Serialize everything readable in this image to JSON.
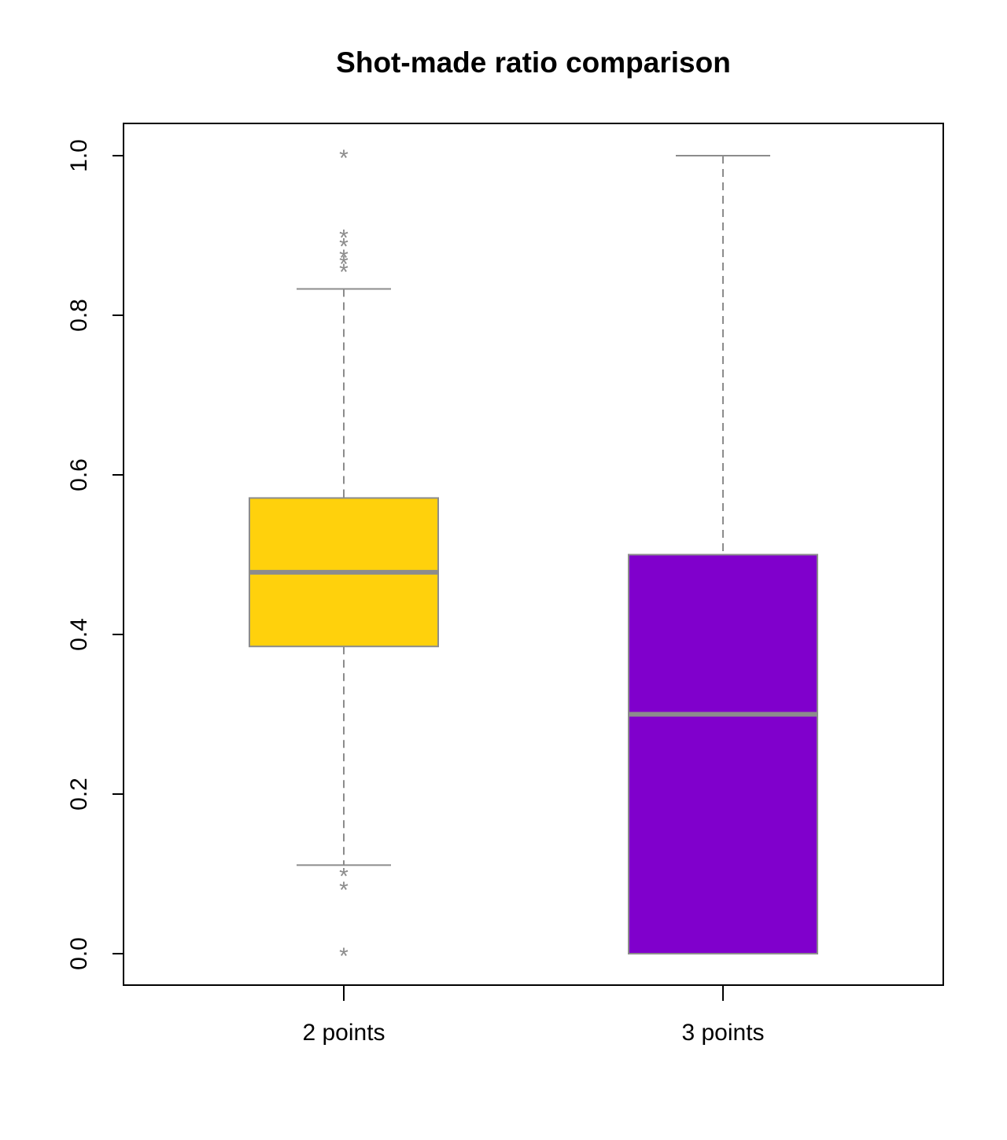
{
  "chart_data": {
    "type": "boxplot",
    "title": "Shot-made ratio comparison",
    "xlabel": "",
    "ylabel": "",
    "ylim": [
      -0.04,
      1.04
    ],
    "yticks": [
      "0.0",
      "0.2",
      "0.4",
      "0.6",
      "0.8",
      "1.0"
    ],
    "grid": false,
    "legend": "none",
    "categories": [
      "2 points",
      "3 points"
    ],
    "series": [
      {
        "min": 0.111,
        "q1": 0.385,
        "median": 0.478,
        "q3": 0.571,
        "max": 0.833,
        "outliers": [
          1.0,
          0.9,
          0.889,
          0.875,
          0.867,
          0.857,
          0.1,
          0.083,
          0.0
        ],
        "fill": "#FFD10C"
      },
      {
        "min": 0.0,
        "q1": 0.0,
        "median": 0.3,
        "q3": 0.5,
        "max": 1.0,
        "outliers": [],
        "fill": "#8000CC"
      }
    ]
  },
  "colors": {
    "box_border": "#8c8c8c",
    "whisker": "#8c8c8c",
    "frame": "#000000"
  }
}
